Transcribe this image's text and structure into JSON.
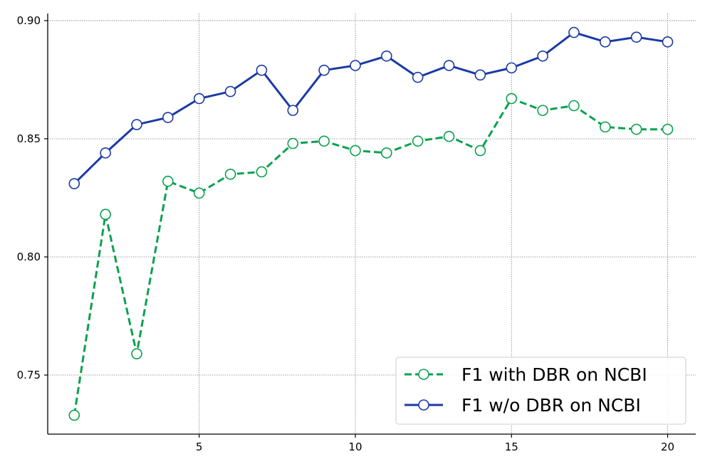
{
  "chart_data": {
    "type": "line",
    "title": "",
    "xlabel": "",
    "ylabel": "",
    "x": [
      1,
      2,
      3,
      4,
      5,
      6,
      7,
      8,
      9,
      10,
      11,
      12,
      13,
      14,
      15,
      16,
      17,
      18,
      19,
      20
    ],
    "xlim": [
      0.15,
      20.9
    ],
    "ylim": [
      0.725,
      0.903
    ],
    "xticks": [
      5,
      10,
      15,
      20
    ],
    "xtick_labels": [
      "5",
      "10",
      "15",
      "20"
    ],
    "yticks": [
      0.75,
      0.8,
      0.85,
      0.9
    ],
    "ytick_labels": [
      "0.75",
      "0.80",
      "0.85",
      "0.90"
    ],
    "grid": true,
    "legend_position": "bottom-right",
    "series": [
      {
        "name": "F1 with DBR on NCBI",
        "color": "#0aa14e",
        "line_style": "dashed",
        "marker": "open-circle",
        "values": [
          0.733,
          0.818,
          0.759,
          0.832,
          0.827,
          0.835,
          0.836,
          0.848,
          0.849,
          0.845,
          0.844,
          0.849,
          0.851,
          0.845,
          0.867,
          0.862,
          0.864,
          0.855,
          0.854,
          0.854
        ]
      },
      {
        "name": "F1 w/o DBR on NCBI",
        "color": "#1a3aa6",
        "line_style": "solid",
        "marker": "open-circle",
        "values": [
          0.831,
          0.844,
          0.856,
          0.859,
          0.867,
          0.87,
          0.879,
          0.862,
          0.879,
          0.881,
          0.885,
          0.876,
          0.881,
          0.877,
          0.88,
          0.885,
          0.895,
          0.891,
          0.893,
          0.891
        ]
      }
    ]
  }
}
